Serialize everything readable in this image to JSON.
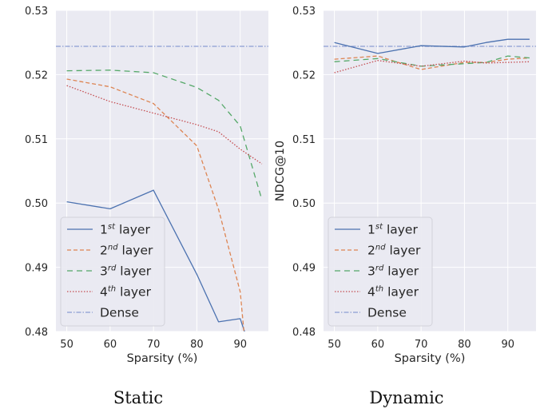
{
  "colors": {
    "background": "#eaeaf2",
    "grid": "#ffffff",
    "layer1": "#4c72b0",
    "layer2": "#dd8452",
    "layer3": "#55a868",
    "layer4": "#c44e52",
    "dense": "#8c9dd4"
  },
  "chart_data": [
    {
      "type": "line",
      "caption": "Static",
      "xlabel": "Sparsity (%)",
      "ylabel": "",
      "xlim": [
        47.5,
        96.5
      ],
      "ylim": [
        0.48,
        0.53
      ],
      "xticks": [
        "50",
        "60",
        "70",
        "80",
        "90"
      ],
      "yticks": [
        "0.48",
        "0.49",
        "0.50",
        "0.51",
        "0.52",
        "0.53"
      ],
      "grid": true,
      "legend_position": "lower-left",
      "series": [
        {
          "name": "1",
          "sup": "st",
          "suffix": " layer",
          "style": "solid",
          "color_key": "layer1",
          "x": [
            50,
            60,
            70,
            80,
            85,
            90,
            91
          ],
          "y": [
            0.5002,
            0.4991,
            0.502,
            0.4889,
            0.4815,
            0.482,
            0.48
          ]
        },
        {
          "name": "2",
          "sup": "nd",
          "suffix": " layer",
          "style": "dashed",
          "color_key": "layer2",
          "x": [
            50,
            60,
            70,
            80,
            85,
            90,
            91
          ],
          "y": [
            0.5193,
            0.5181,
            0.5155,
            0.5089,
            0.499,
            0.4862,
            0.479
          ]
        },
        {
          "name": "3",
          "sup": "rd",
          "suffix": " layer",
          "style": "dashed-long",
          "color_key": "layer3",
          "x": [
            50,
            60,
            70,
            80,
            85,
            90,
            95
          ],
          "y": [
            0.5206,
            0.5207,
            0.5203,
            0.518,
            0.516,
            0.512,
            0.5005
          ]
        },
        {
          "name": "4",
          "sup": "th",
          "suffix": " layer",
          "style": "dotted",
          "color_key": "layer4",
          "x": [
            50,
            60,
            70,
            80,
            85,
            90,
            95
          ],
          "y": [
            0.5183,
            0.5158,
            0.514,
            0.5122,
            0.5111,
            0.5084,
            0.5061
          ]
        }
      ],
      "reference_line": {
        "name": "Dense",
        "style": "dashdot",
        "color_key": "dense",
        "y": 0.5244
      }
    },
    {
      "type": "line",
      "caption": "Dynamic",
      "xlabel": "Sparsity (%)",
      "ylabel": "NDCG@10",
      "xlim": [
        47.5,
        96.5
      ],
      "ylim": [
        0.48,
        0.53
      ],
      "xticks": [
        "50",
        "60",
        "70",
        "80",
        "90"
      ],
      "yticks": [
        "0.48",
        "0.49",
        "0.50",
        "0.51",
        "0.52",
        "0.53"
      ],
      "grid": true,
      "legend_position": "lower-left",
      "series": [
        {
          "name": "1",
          "sup": "st",
          "suffix": " layer",
          "style": "solid",
          "color_key": "layer1",
          "x": [
            50,
            60,
            70,
            80,
            85,
            90,
            95
          ],
          "y": [
            0.525,
            0.5233,
            0.5245,
            0.5243,
            0.525,
            0.5255,
            0.5255
          ]
        },
        {
          "name": "2",
          "sup": "nd",
          "suffix": " layer",
          "style": "dashed",
          "color_key": "layer2",
          "x": [
            50,
            60,
            70,
            80,
            85,
            90,
            95
          ],
          "y": [
            0.5224,
            0.5229,
            0.5208,
            0.5219,
            0.5219,
            0.5224,
            0.5226
          ]
        },
        {
          "name": "3",
          "sup": "rd",
          "suffix": " layer",
          "style": "dashed-long",
          "color_key": "layer3",
          "x": [
            50,
            60,
            70,
            80,
            85,
            90,
            95
          ],
          "y": [
            0.522,
            0.5225,
            0.5213,
            0.5217,
            0.5219,
            0.5229,
            0.5226
          ]
        },
        {
          "name": "4",
          "sup": "th",
          "suffix": " layer",
          "style": "dotted",
          "color_key": "layer4",
          "x": [
            50,
            60,
            70,
            80,
            85,
            90,
            95
          ],
          "y": [
            0.5203,
            0.5222,
            0.5213,
            0.5221,
            0.5218,
            0.5219,
            0.522
          ]
        }
      ],
      "reference_line": {
        "name": "Dense",
        "style": "dashdot",
        "color_key": "dense",
        "y": 0.5244
      }
    }
  ]
}
